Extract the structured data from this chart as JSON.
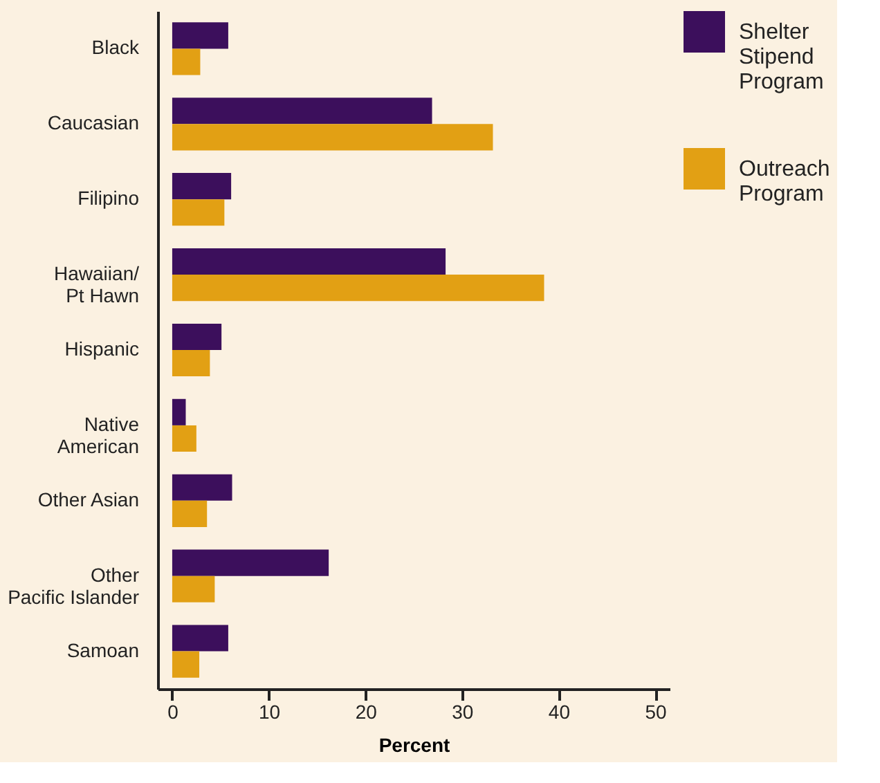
{
  "chart_data": {
    "type": "bar",
    "orientation": "horizontal",
    "xlabel": "Percent",
    "categories": [
      "Black",
      "Caucasian",
      "Filipino",
      "Hawaiian/\nPt Hawn",
      "Hispanic",
      "Native\nAmerican",
      "Other Asian",
      "Other\nPacific Islander",
      "Samoan"
    ],
    "series": [
      {
        "name": "Shelter Stipend Program",
        "color": "#3c0f5c",
        "values": [
          5.8,
          26.9,
          6.1,
          28.3,
          5.1,
          1.4,
          6.2,
          16.2,
          5.8
        ]
      },
      {
        "name": "Outreach Program",
        "color": "#e2a014",
        "values": [
          2.9,
          33.2,
          5.4,
          38.5,
          3.9,
          2.5,
          3.6,
          4.4,
          2.8
        ]
      }
    ],
    "xlim": [
      -1.5,
      51.5
    ],
    "xticks": [
      0,
      10,
      20,
      30,
      40,
      50
    ],
    "grid": false,
    "legend": "top right"
  }
}
